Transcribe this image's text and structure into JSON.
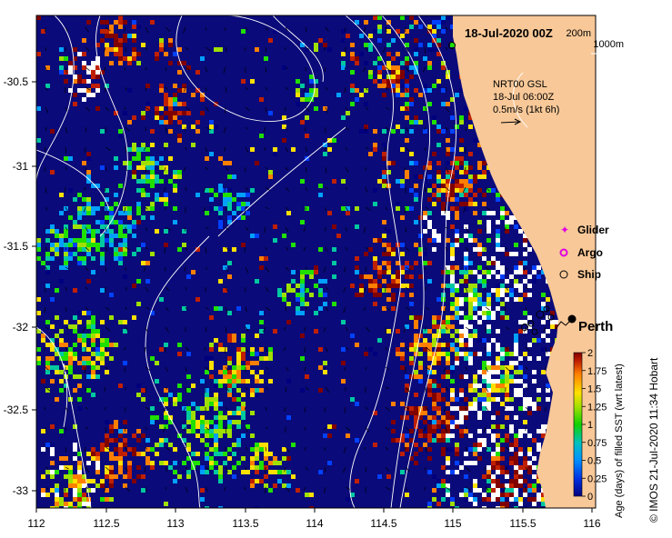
{
  "map": {
    "date_label": "18-Jul-2020 00Z",
    "contours": [
      "200m",
      "1000m"
    ],
    "current": {
      "source": "NRT00 GSL",
      "time": "18-Jul 06:00Z",
      "scale": "0.5m/s (1kt 6h)"
    },
    "legend": {
      "glider": "Glider",
      "argo": "Argo",
      "ship": "Ship"
    },
    "place": "Perth",
    "x_ticks": [
      "112",
      "112.5",
      "113",
      "113.5",
      "114",
      "114.5",
      "115",
      "115.5",
      "116"
    ],
    "y_ticks": [
      "-30.5",
      "-31",
      "-31.5",
      "-32",
      "-32.5",
      "-33"
    ],
    "colorbar": {
      "label": "Age (days) of filled SST (wrt latest)",
      "ticks": [
        "0",
        "0.25",
        "0.5",
        "0.75",
        "1",
        "1.25",
        "1.5",
        "1.75",
        "2"
      ]
    },
    "credit": "© IMOS 21-Jul-2020 11:34 Hobart",
    "colors": {
      "land": "#F8C898",
      "ocean": "#0A0A7A",
      "age_scale": [
        "#00007F",
        "#0040FF",
        "#00A0FF",
        "#00C8A0",
        "#20E000",
        "#A0E000",
        "#FFE000",
        "#FF8000",
        "#C02000",
        "#800000"
      ]
    }
  }
}
